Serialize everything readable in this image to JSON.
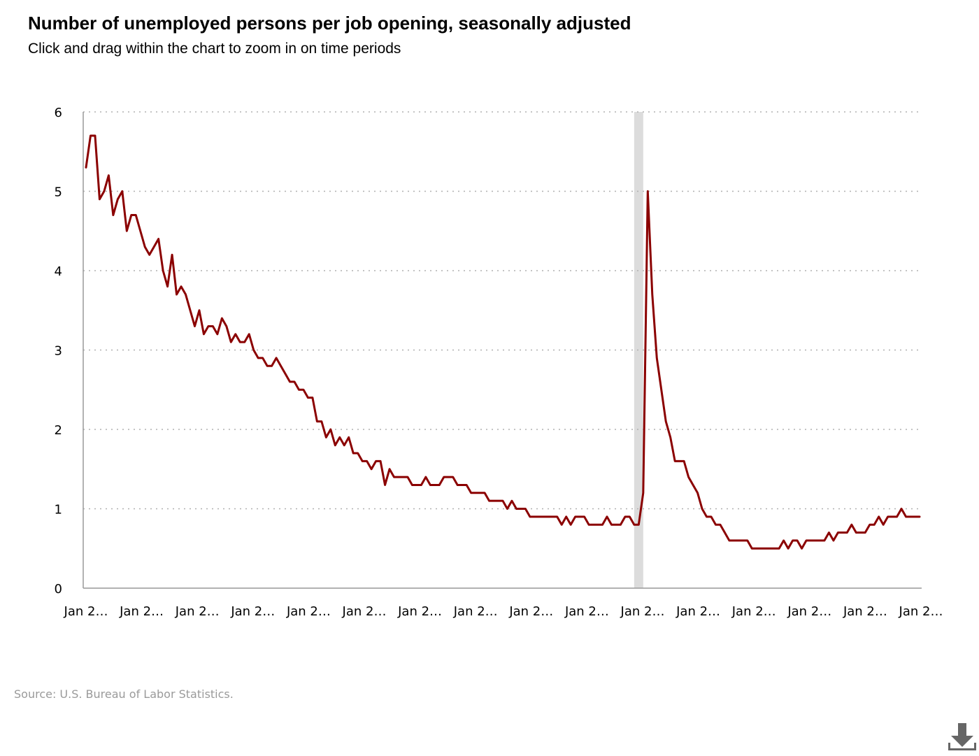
{
  "title": "Number of unemployed persons per job opening, seasonally adjusted",
  "subtitle": "Click and drag within the chart to zoom in on time periods",
  "source": "Source: U.S. Bureau of Labor Statistics.",
  "download": {
    "icon": "download-icon"
  },
  "colors": {
    "line": "#8b0000",
    "recession_band": "#dcdcdc",
    "grid": "#b0b0b0",
    "axis": "#999999"
  },
  "chart_data": {
    "type": "line",
    "title": "Number of unemployed persons per job opening, seasonally adjusted",
    "xlabel": "",
    "ylabel": "",
    "ylim": [
      0,
      6
    ],
    "y_ticks": [
      0,
      1,
      2,
      3,
      4,
      5,
      6
    ],
    "x_tick_labels": [
      "Jan 2…",
      "Jan 2…",
      "Jan 2…",
      "Jan 2…",
      "Jan 2…",
      "Jan 2…",
      "Jan 2…",
      "Jan 2…",
      "Jan 2…",
      "Jan 2…",
      "Jan 2…",
      "Jan 2…",
      "Jan 2…",
      "Jan 2…",
      "Jan 2…",
      "Jan 2…"
    ],
    "x_ticks_count": 16,
    "grid": "horizontal dotted",
    "legend": "none",
    "recession_shading": {
      "start_month_index": 121,
      "end_month_index": 123
    },
    "series": [
      {
        "values": [
          5.3,
          5.7,
          5.7,
          4.9,
          5.0,
          5.2,
          4.7,
          4.9,
          5.0,
          4.5,
          4.7,
          4.7,
          4.5,
          4.3,
          4.2,
          4.3,
          4.4,
          4.0,
          3.8,
          4.2,
          3.7,
          3.8,
          3.7,
          3.5,
          3.3,
          3.5,
          3.2,
          3.3,
          3.3,
          3.2,
          3.4,
          3.3,
          3.1,
          3.2,
          3.1,
          3.1,
          3.2,
          3.0,
          2.9,
          2.9,
          2.8,
          2.8,
          2.9,
          2.8,
          2.7,
          2.6,
          2.6,
          2.5,
          2.5,
          2.4,
          2.4,
          2.1,
          2.1,
          1.9,
          2.0,
          1.8,
          1.9,
          1.8,
          1.9,
          1.7,
          1.7,
          1.6,
          1.6,
          1.5,
          1.6,
          1.6,
          1.3,
          1.5,
          1.4,
          1.4,
          1.4,
          1.4,
          1.3,
          1.3,
          1.3,
          1.4,
          1.3,
          1.3,
          1.3,
          1.4,
          1.4,
          1.4,
          1.3,
          1.3,
          1.3,
          1.2,
          1.2,
          1.2,
          1.2,
          1.1,
          1.1,
          1.1,
          1.1,
          1.0,
          1.1,
          1.0,
          1.0,
          1.0,
          0.9,
          0.9,
          0.9,
          0.9,
          0.9,
          0.9,
          0.9,
          0.8,
          0.9,
          0.8,
          0.9,
          0.9,
          0.9,
          0.8,
          0.8,
          0.8,
          0.8,
          0.9,
          0.8,
          0.8,
          0.8,
          0.9,
          0.9,
          0.8,
          0.8,
          1.2,
          5.0,
          3.7,
          2.9,
          2.5,
          2.1,
          1.9,
          1.6,
          1.6,
          1.6,
          1.4,
          1.3,
          1.2,
          1.0,
          0.9,
          0.9,
          0.8,
          0.8,
          0.7,
          0.6,
          0.6,
          0.6,
          0.6,
          0.6,
          0.5,
          0.5,
          0.5,
          0.5,
          0.5,
          0.5,
          0.5,
          0.6,
          0.5,
          0.6,
          0.6,
          0.5,
          0.6,
          0.6,
          0.6,
          0.6,
          0.6,
          0.7,
          0.6,
          0.7,
          0.7,
          0.7,
          0.8,
          0.7,
          0.7,
          0.7,
          0.8,
          0.8,
          0.9,
          0.8,
          0.9,
          0.9,
          0.9,
          1.0,
          0.9,
          0.9,
          0.9,
          0.9
        ]
      }
    ]
  }
}
